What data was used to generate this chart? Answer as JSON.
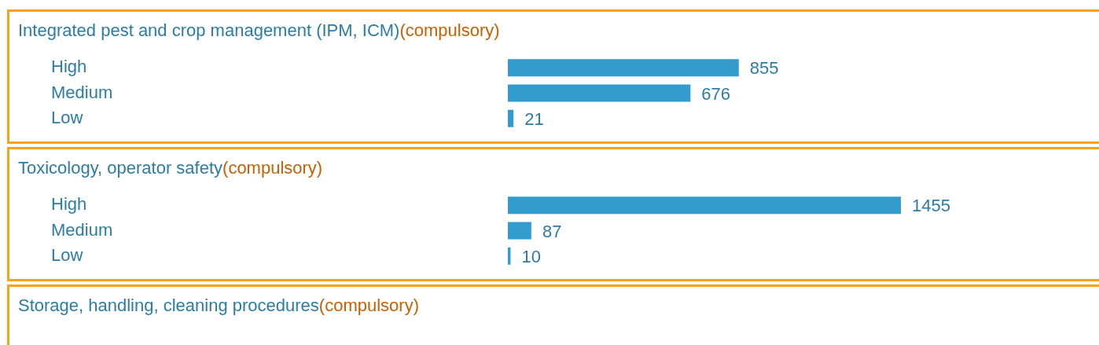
{
  "chart_data": [
    {
      "type": "bar",
      "title": "Integrated pest and crop management (IPM, ICM)",
      "subtitle": "(compulsory)",
      "orientation": "horizontal",
      "categories": [
        "High",
        "Medium",
        "Low"
      ],
      "values": [
        855,
        676,
        21
      ],
      "color": "#339ccd",
      "data_labels": true,
      "grid": false,
      "legend": false
    },
    {
      "type": "bar",
      "title": "Toxicology, operator safety",
      "subtitle": "(compulsory)",
      "orientation": "horizontal",
      "categories": [
        "High",
        "Medium",
        "Low"
      ],
      "values": [
        1455,
        87,
        10
      ],
      "color": "#339ccd",
      "data_labels": true,
      "grid": false,
      "legend": false
    },
    {
      "type": "other",
      "title": "Storage, handling, cleaning procedures",
      "subtitle": "(compulsory)"
    }
  ]
}
